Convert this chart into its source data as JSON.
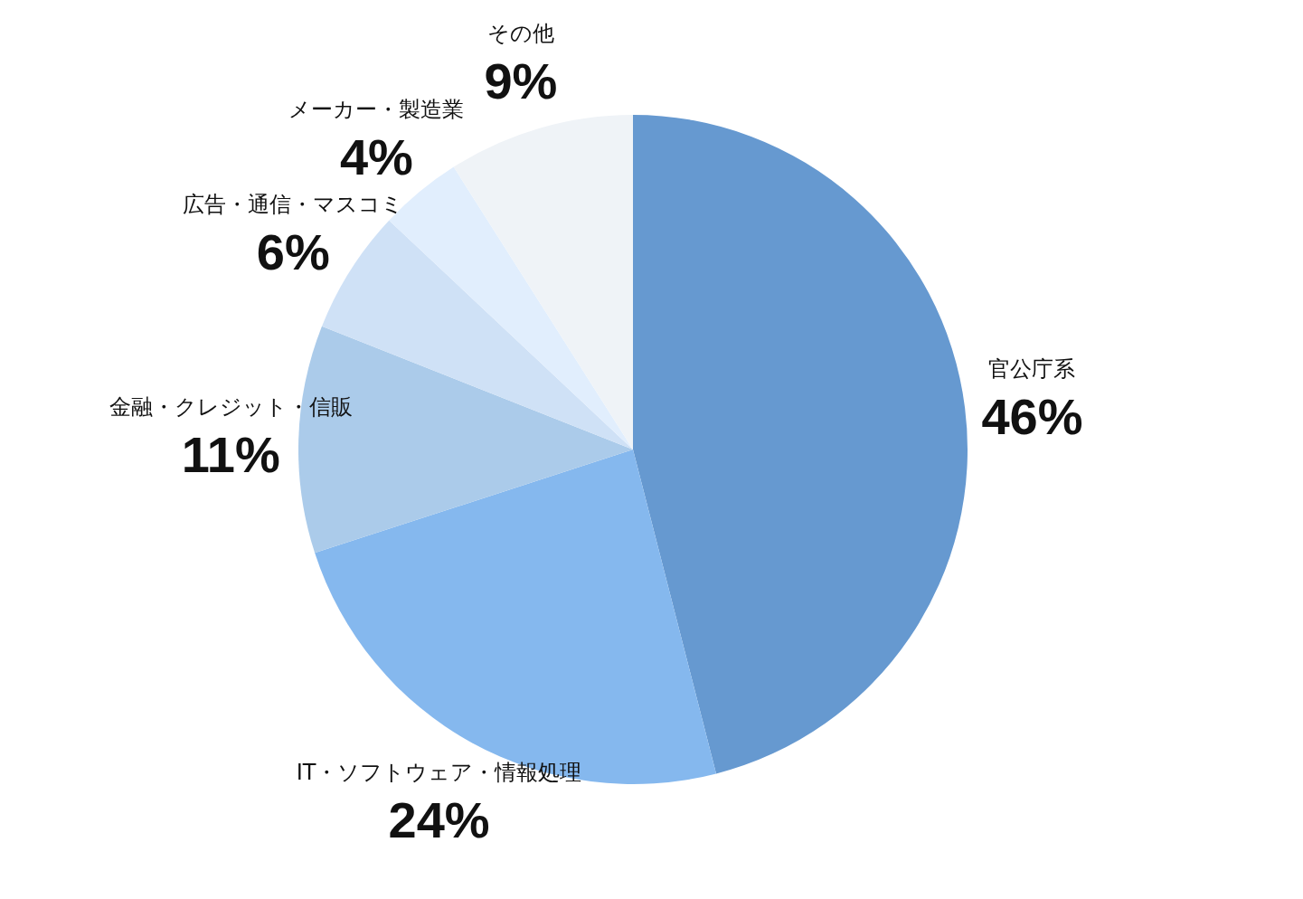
{
  "chart_data": {
    "type": "pie",
    "categories": [
      "官公庁系",
      "IT・ソフトウェア・情報処理",
      "金融・クレジット・信販",
      "広告・通信・マスコミ",
      "メーカー・製造業",
      "その他"
    ],
    "values": [
      46,
      24,
      11,
      6,
      4,
      9
    ],
    "colors": [
      "#6699d0",
      "#85b8ee",
      "#abcbea",
      "#cfe1f6",
      "#e1eefd",
      "#eff3f7"
    ],
    "value_labels": [
      "46%",
      "24%",
      "11%",
      "6%",
      "4%",
      "9%"
    ]
  }
}
